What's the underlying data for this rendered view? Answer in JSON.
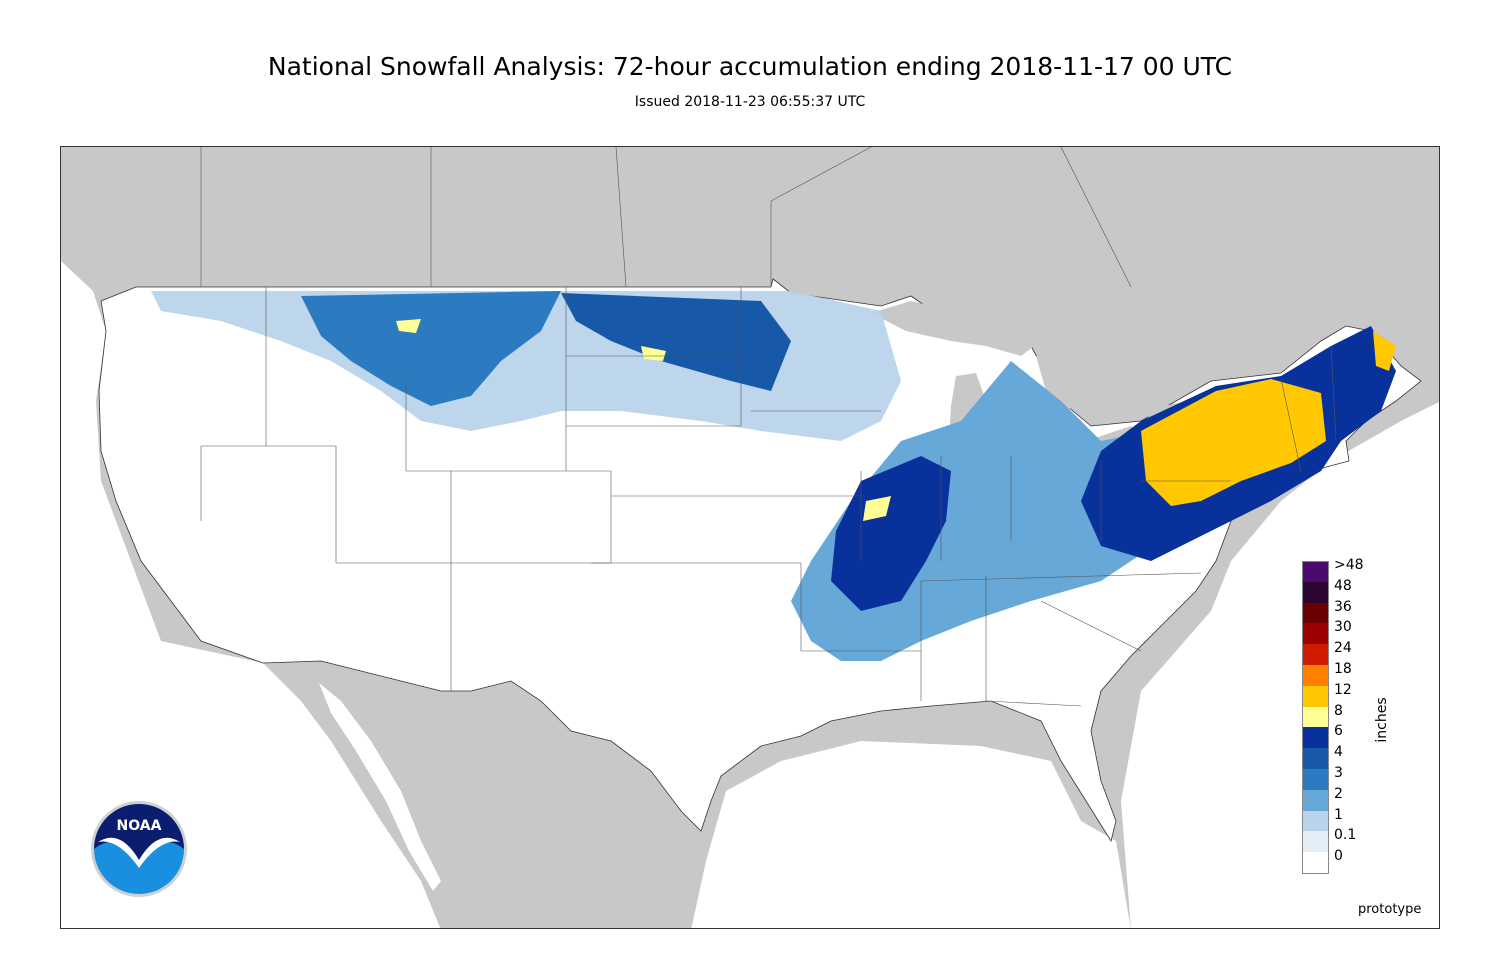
{
  "header": {
    "title": "National Snowfall Analysis: 72-hour accumulation ending 2018-11-17 00 UTC",
    "subtitle": "Issued 2018-11-23 06:55:37 UTC"
  },
  "legend": {
    "units": "inches",
    "bins": [
      {
        "label": ">48",
        "color": "#4b0a6e"
      },
      {
        "label": "48",
        "color": "#2c0530"
      },
      {
        "label": "36",
        "color": "#6a0000"
      },
      {
        "label": "30",
        "color": "#9c0000"
      },
      {
        "label": "24",
        "color": "#d01b00"
      },
      {
        "label": "18",
        "color": "#ff8000"
      },
      {
        "label": "12",
        "color": "#ffc800"
      },
      {
        "label": "8",
        "color": "#ffff96"
      },
      {
        "label": "6",
        "color": "#08319c"
      },
      {
        "label": "4",
        "color": "#1858a8"
      },
      {
        "label": "3",
        "color": "#2c7bc0"
      },
      {
        "label": "2",
        "color": "#66a8d8"
      },
      {
        "label": "1",
        "color": "#b9d4ea"
      },
      {
        "label": "0.1",
        "color": "#e4eef7"
      },
      {
        "label": "0",
        "color": "#ffffff"
      }
    ]
  },
  "footer": {
    "note": "prototype",
    "logo_text": "NOAA"
  },
  "colors": {
    "background_land": "#c8c8c8",
    "conus": "#ffffff",
    "boundaries": "#555555"
  }
}
